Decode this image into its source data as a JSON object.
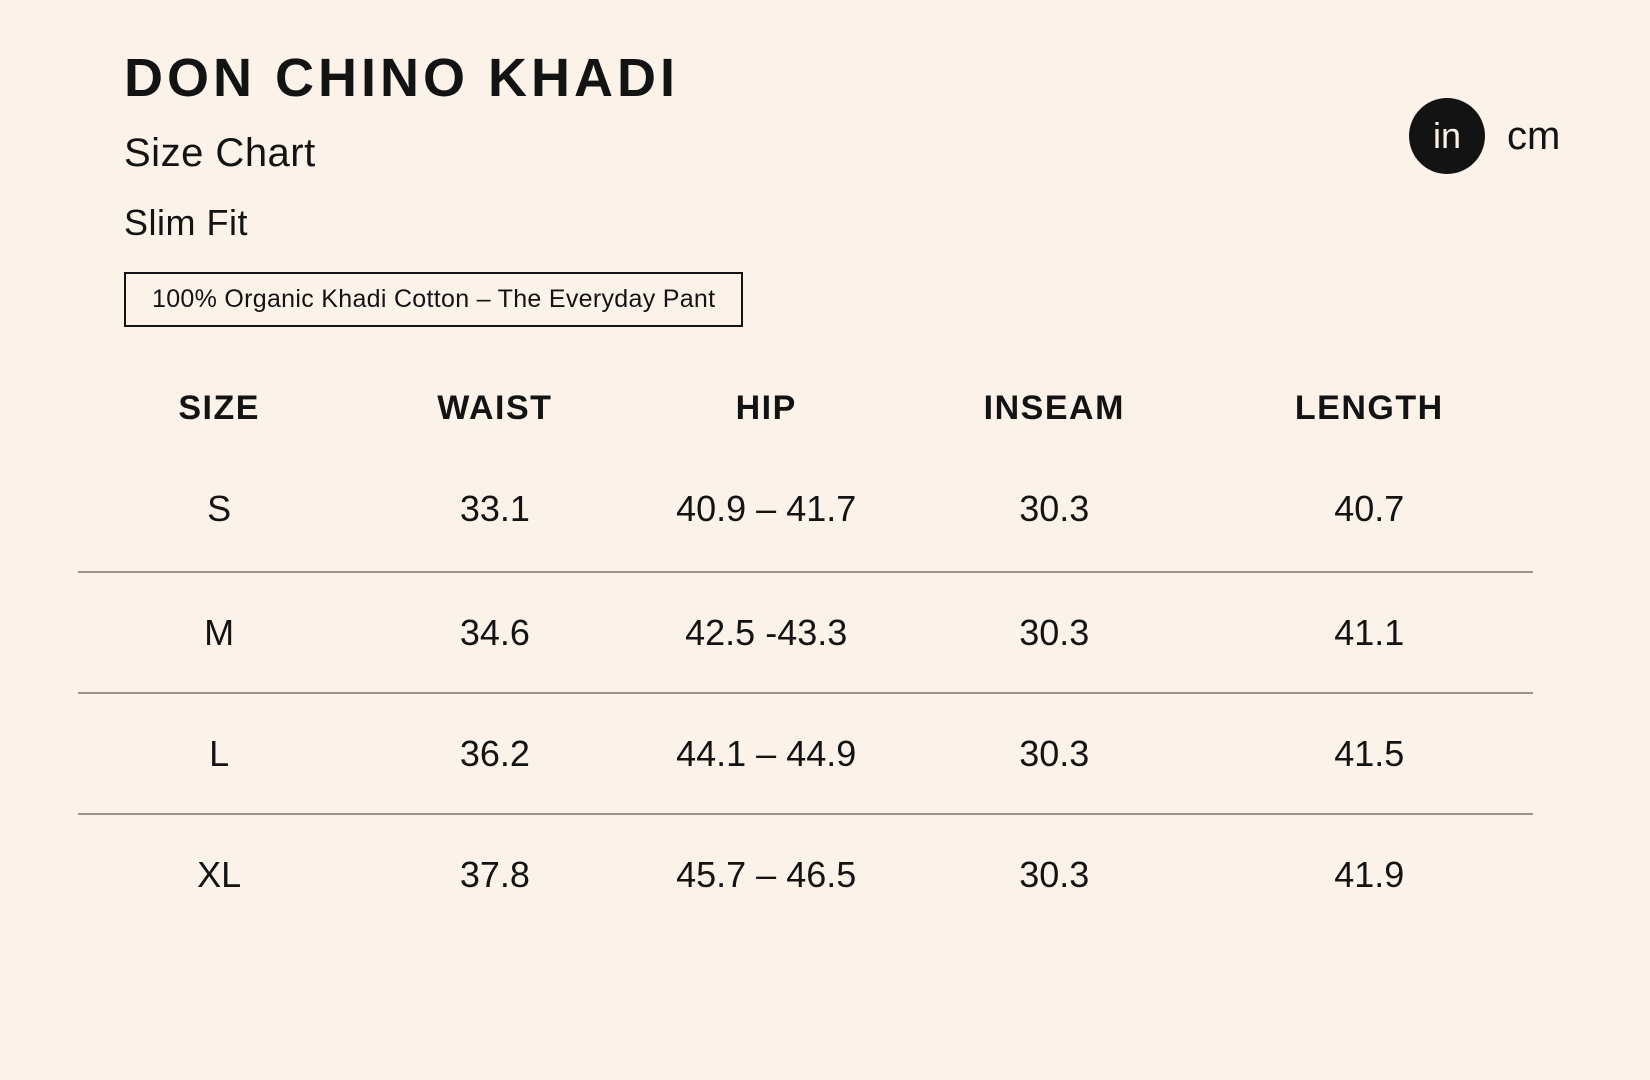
{
  "page": {
    "background_color": "#fbf3ea",
    "text_color": "#131313",
    "divider_color": "#9b9389"
  },
  "header": {
    "title": "DON CHINO KHADI",
    "subtitle": "Size Chart",
    "fit": "Slim Fit",
    "badge": "100% Organic Khadi Cotton – The Everyday Pant"
  },
  "unit_toggle": {
    "selected": "in",
    "in_label": "in",
    "cm_label": "cm"
  },
  "table": {
    "columns": {
      "size": "SIZE",
      "waist": "WAIST",
      "hip": "HIP",
      "inseam": "INSEAM",
      "length": "LENGTH"
    },
    "rows": [
      {
        "size": "S",
        "waist": "33.1",
        "hip": "40.9 – 41.7",
        "inseam": "30.3",
        "length": "40.7"
      },
      {
        "size": "M",
        "waist": "34.6",
        "hip": "42.5 -43.3",
        "inseam": "30.3",
        "length": "41.1"
      },
      {
        "size": "L",
        "waist": "36.2",
        "hip": "44.1 – 44.9",
        "inseam": "30.3",
        "length": "41.5"
      },
      {
        "size": "XL",
        "waist": "37.8",
        "hip": "45.7 – 46.5",
        "inseam": "30.3",
        "length": "41.9"
      }
    ]
  }
}
